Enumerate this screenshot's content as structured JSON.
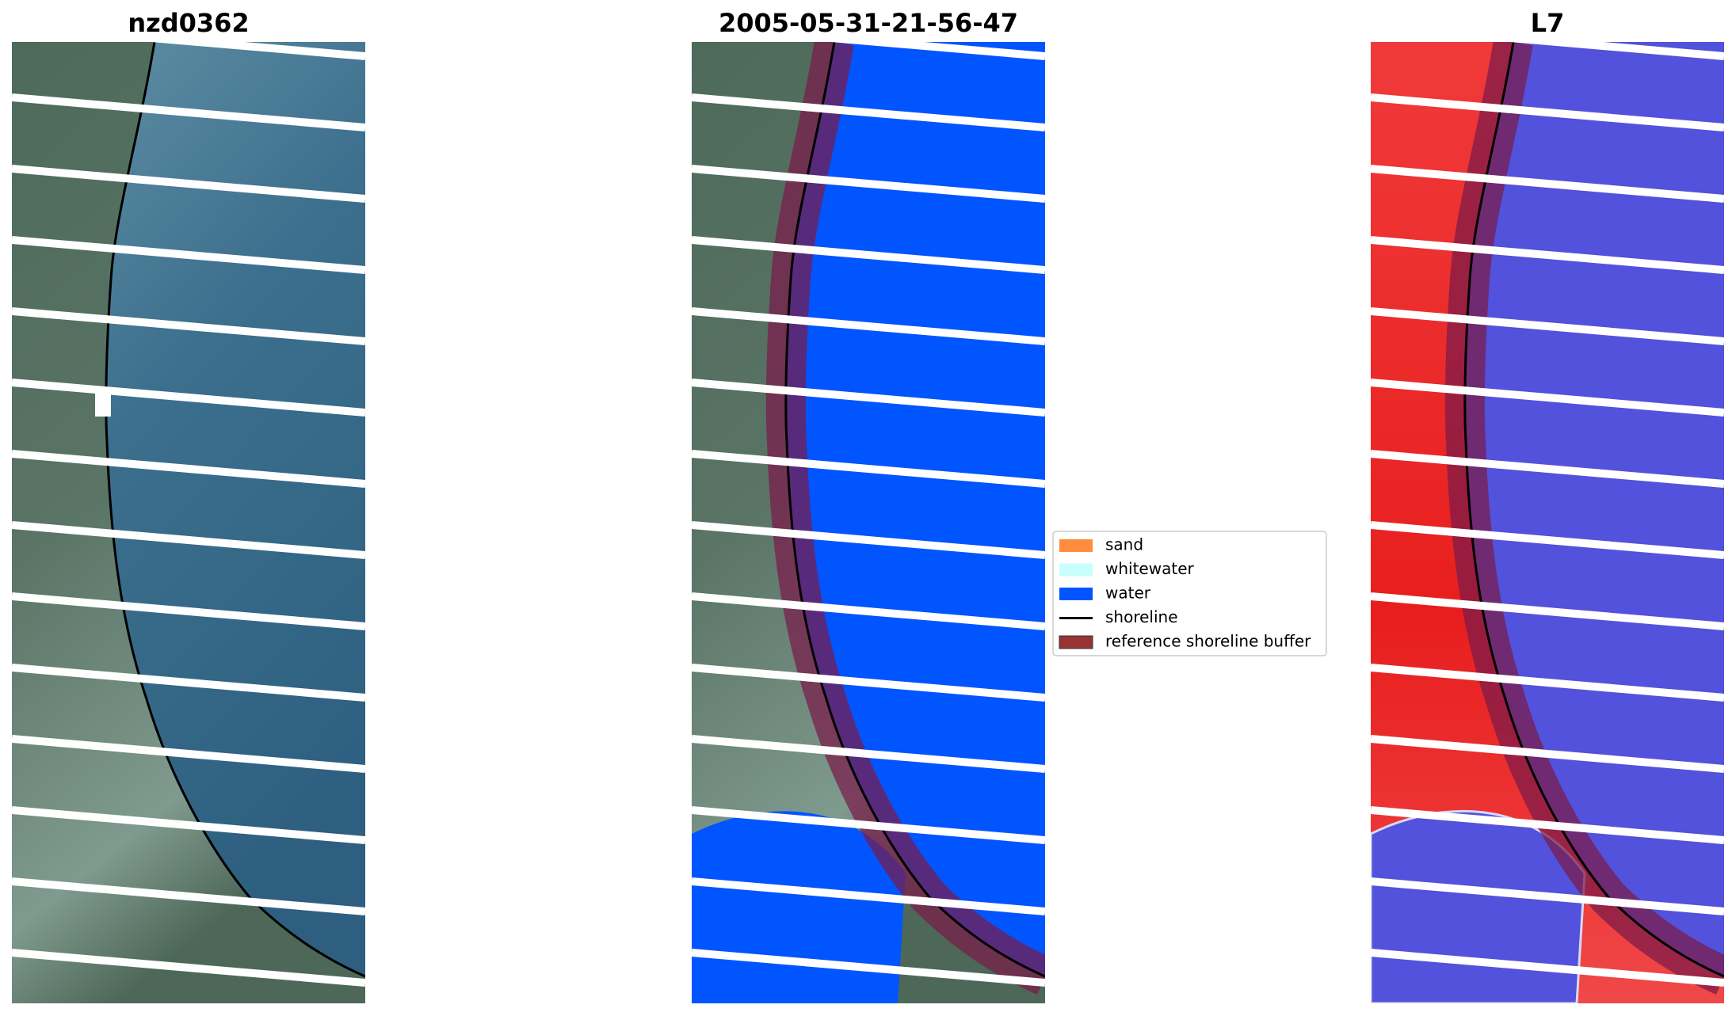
{
  "panels": [
    {
      "title": "nzd0362"
    },
    {
      "title": "2005-05-31-21-56-47"
    },
    {
      "title": "L7"
    }
  ],
  "legend": {
    "entries": [
      {
        "label": "sand",
        "color": "#ff8c3f",
        "kind": "patch"
      },
      {
        "label": "whitewater",
        "color": "#c8fffc",
        "kind": "patch"
      },
      {
        "label": "water",
        "color": "#0055ff",
        "kind": "patch"
      },
      {
        "label": "shoreline",
        "color": "#000000",
        "kind": "line"
      },
      {
        "label": "reference shoreline buffer",
        "color": "#993333",
        "kind": "patch"
      }
    ]
  }
}
